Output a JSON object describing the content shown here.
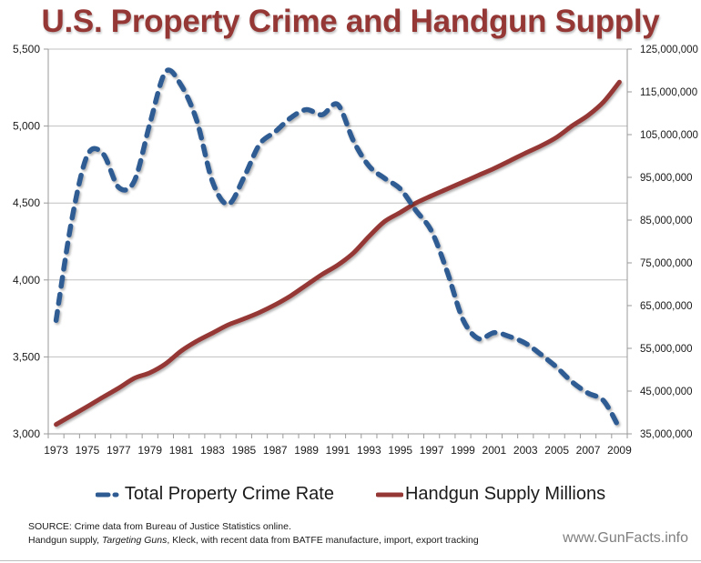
{
  "chart_data": {
    "type": "line",
    "title": "U.S. Property Crime and Handgun Supply",
    "title_color": "#953735",
    "xlabel": "",
    "ylabel": "",
    "y2label": "",
    "grid": true,
    "legend_position": "bottom",
    "x": [
      1973,
      1974,
      1975,
      1976,
      1977,
      1978,
      1979,
      1980,
      1981,
      1982,
      1983,
      1984,
      1985,
      1986,
      1987,
      1988,
      1989,
      1990,
      1991,
      1992,
      1993,
      1994,
      1995,
      1996,
      1997,
      1998,
      1999,
      2000,
      2001,
      2002,
      2003,
      2004,
      2005,
      2006,
      2007,
      2008,
      2009
    ],
    "x_tick_labels": [
      "1973",
      "1975",
      "1977",
      "1979",
      "1981",
      "1983",
      "1985",
      "1987",
      "1989",
      "1991",
      "1993",
      "1995",
      "1997",
      "1999",
      "2001",
      "2003",
      "2005",
      "2007",
      "2009"
    ],
    "ylim": [
      3000,
      5500
    ],
    "y_tick_labels": [
      "3,000",
      "3,500",
      "4,000",
      "4,500",
      "5,000",
      "5,500"
    ],
    "y_ticks": [
      3000,
      3500,
      4000,
      4500,
      5000,
      5500
    ],
    "y2lim": [
      35000000,
      125000000
    ],
    "y2_tick_labels": [
      "35,000,000",
      "45,000,000",
      "55,000,000",
      "65,000,000",
      "75,000,000",
      "85,000,000",
      "95,000,000",
      "105,000,000",
      "115,000,000",
      "125,000,000"
    ],
    "y2_ticks": [
      35000000,
      45000000,
      55000000,
      65000000,
      75000000,
      85000000,
      95000000,
      105000000,
      115000000,
      125000000
    ],
    "series": [
      {
        "name": "Total Property Crime Rate",
        "axis": "left",
        "style": "dashed",
        "color": "#2F5B93",
        "values": [
          3737,
          4389,
          4811,
          4820,
          4601,
          4642,
          5017,
          5353,
          5264,
          5032,
          4637,
          4492,
          4666,
          4881,
          4963,
          5054,
          5107,
          5073,
          5140,
          4904,
          4740,
          4660,
          4591,
          4451,
          4316,
          4052,
          3743,
          3618,
          3658,
          3631,
          3588,
          3514,
          3432,
          3335,
          3264,
          3214,
          3036
        ]
      },
      {
        "name": "Handgun Supply Millions",
        "axis": "right",
        "style": "solid",
        "color": "#953735",
        "values": [
          37200000,
          39300000,
          41400000,
          43600000,
          45700000,
          48000000,
          49300000,
          51400000,
          54400000,
          56700000,
          58600000,
          60500000,
          61900000,
          63400000,
          65200000,
          67300000,
          69800000,
          72300000,
          74500000,
          77300000,
          81200000,
          84700000,
          86800000,
          89000000,
          90700000,
          92300000,
          93900000,
          95500000,
          97100000,
          98900000,
          100700000,
          102400000,
          104400000,
          107100000,
          109500000,
          112700000,
          117300000
        ]
      }
    ]
  },
  "legend": {
    "crime_label": "Total Property Crime Rate",
    "handgun_label": "Handgun Supply Millions"
  },
  "footer": {
    "source_line1": "SOURCE: Crime data from Bureau of Justice Statistics online.",
    "source_line2_prefix": "Handgun supply, ",
    "source_line2_italic": "Targeting Guns",
    "source_line2_suffix": ", Kleck, with recent data from BATFE manufacture, import, export tracking",
    "site": "www.GunFacts.info"
  }
}
